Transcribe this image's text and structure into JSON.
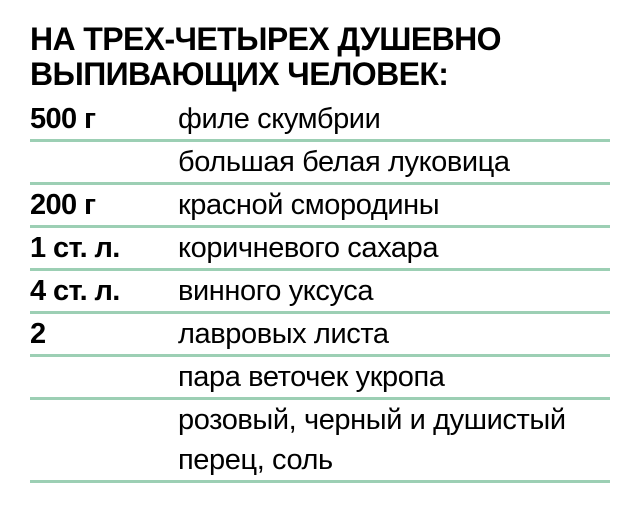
{
  "theme": {
    "background": "#ffffff",
    "text_color": "#000000",
    "divider_color": "#9ccfb4"
  },
  "header": {
    "title_lines": [
      "НА ТРЕХ-ЧЕТЫРЕХ ДУШЕВНО",
      "ВЫПИВАЮЩИХ ЧЕЛОВЕК:"
    ]
  },
  "ingredients": {
    "rows": [
      {
        "qty": "500 г",
        "name": "филе скумбрии"
      },
      {
        "qty": "",
        "name": "большая белая луковица"
      },
      {
        "qty": "200 г",
        "name": "красной смородины"
      },
      {
        "qty": "1 ст. л.",
        "name": "коричневого сахара"
      },
      {
        "qty": "4 ст. л.",
        "name": "винного уксуса"
      },
      {
        "qty": "2",
        "name": "лавровых листа"
      },
      {
        "qty": "",
        "name": "пара веточек укропа"
      },
      {
        "qty": "",
        "name": "розовый, черный и душистый перец, соль"
      }
    ]
  }
}
